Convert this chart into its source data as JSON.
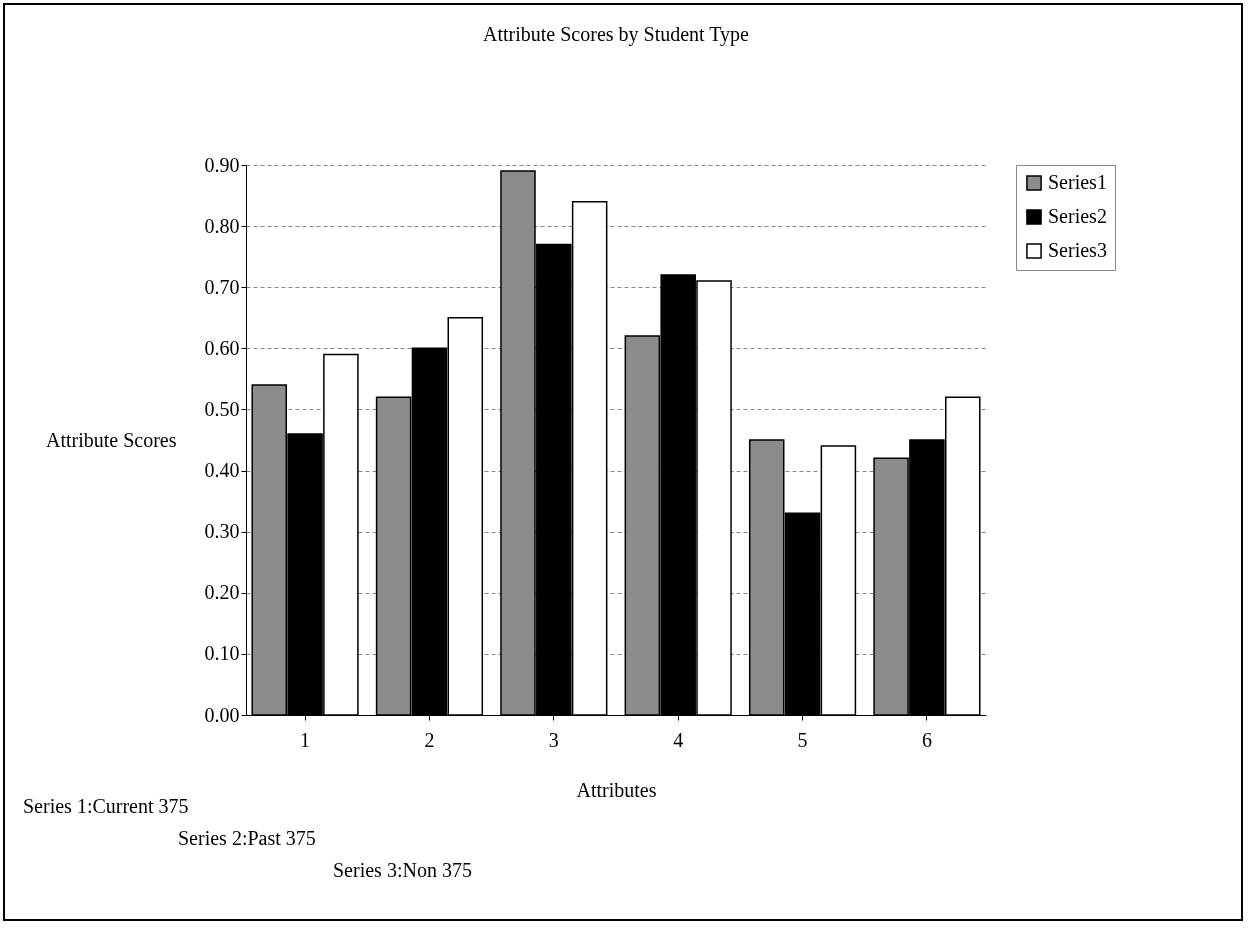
{
  "chart_data": {
    "type": "bar",
    "title": "Attribute Scores by Student Type",
    "xlabel": "Attributes",
    "ylabel": "Attribute Scores",
    "categories": [
      "1",
      "2",
      "3",
      "4",
      "5",
      "6"
    ],
    "series": [
      {
        "name": "Series1",
        "color": "#8c8c8c",
        "values": [
          0.54,
          0.52,
          0.89,
          0.62,
          0.45,
          0.42
        ]
      },
      {
        "name": "Series2",
        "color": "#000000",
        "values": [
          0.46,
          0.6,
          0.77,
          0.72,
          0.33,
          0.45
        ]
      },
      {
        "name": "Series3",
        "color": "#ffffff",
        "values": [
          0.59,
          0.65,
          0.84,
          0.71,
          0.44,
          0.52
        ]
      }
    ],
    "ylim": [
      0,
      0.9
    ],
    "yticks": [
      {
        "value": 0,
        "label": "0.00"
      },
      {
        "value": 0.1,
        "label": "0.10"
      },
      {
        "value": 0.2,
        "label": "0.20"
      },
      {
        "value": 0.3,
        "label": "0.30"
      },
      {
        "value": 0.4,
        "label": "0.40"
      },
      {
        "value": 0.5,
        "label": "0.50"
      },
      {
        "value": 0.6,
        "label": "0.60"
      },
      {
        "value": 0.7,
        "label": "0.70"
      },
      {
        "value": 0.8,
        "label": "0.80"
      },
      {
        "value": 0.9,
        "label": "0.90"
      }
    ],
    "grid": "y",
    "legend": "right",
    "annotations": [
      "Series 1:Current 375",
      "Series 2:Past 375",
      "Series 3:Non 375"
    ]
  }
}
